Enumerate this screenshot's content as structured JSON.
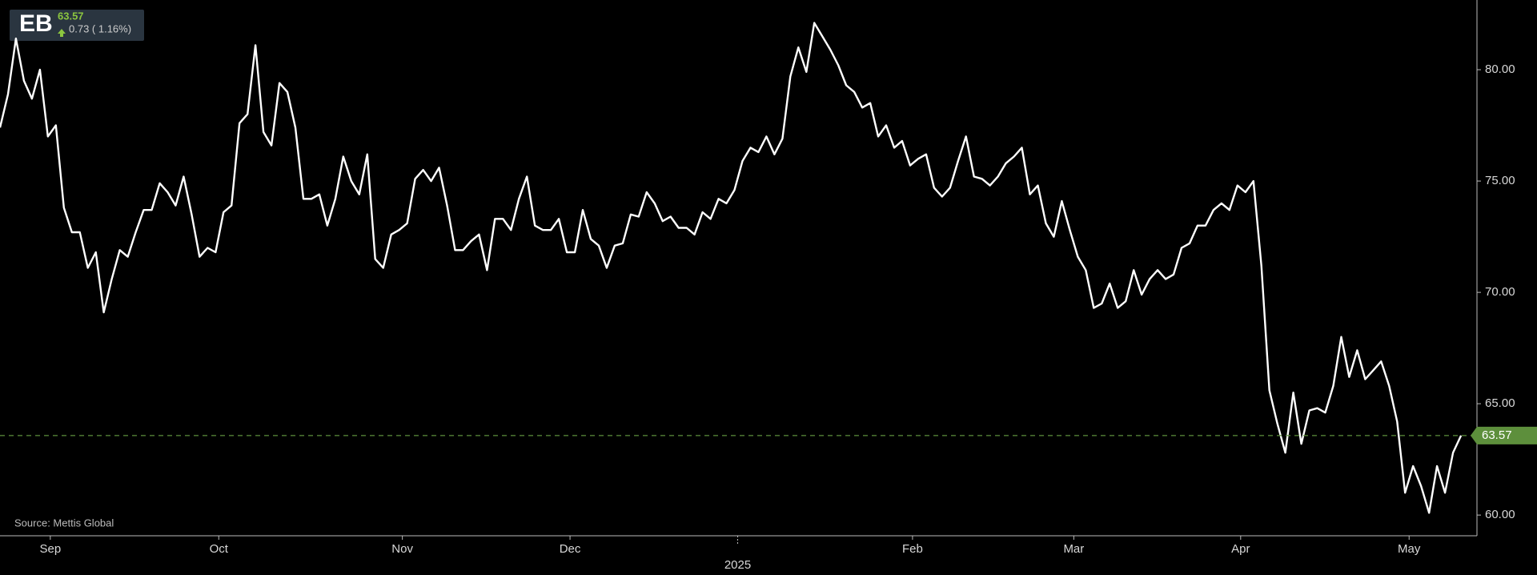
{
  "chart_data": {
    "type": "line",
    "ticker": "EB",
    "change": "0.73 ( 1.16%)",
    "source": "Source: Mettis Global",
    "series": [
      {
        "color": "#ffffff",
        "values": [
          77.4,
          78.9,
          81.4,
          79.5,
          78.7,
          80.0,
          77.0,
          77.5,
          73.8,
          72.7,
          72.7,
          71.1,
          71.8,
          69.1,
          70.6,
          71.9,
          71.6,
          72.7,
          73.7,
          73.7,
          74.9,
          74.5,
          73.9,
          75.2,
          73.5,
          71.6,
          72.0,
          71.8,
          73.6,
          73.9,
          77.6,
          78.0,
          81.1,
          77.2,
          76.6,
          79.4,
          79.0,
          77.4,
          74.2,
          74.2,
          74.4,
          73.0,
          74.2,
          76.1,
          75.0,
          74.4,
          76.2,
          71.5,
          71.1,
          72.6,
          72.8,
          73.1,
          75.1,
          75.5,
          75.0,
          75.6,
          73.9,
          71.9,
          71.9,
          72.3,
          72.6,
          71.0,
          73.3,
          73.3,
          72.8,
          74.2,
          75.2,
          73.0,
          72.8,
          72.8,
          73.3,
          71.8,
          71.8,
          73.7,
          72.4,
          72.1,
          71.1,
          72.1,
          72.2,
          73.5,
          73.4,
          74.5,
          74.0,
          73.2,
          73.4,
          72.9,
          72.9,
          72.6,
          73.6,
          73.3,
          74.2,
          74.0,
          74.6,
          75.9,
          76.5,
          76.3,
          77.0,
          76.2,
          76.9,
          79.7,
          81.0,
          79.9,
          82.1,
          81.5,
          80.9,
          80.2,
          79.3,
          79.0,
          78.3,
          78.5,
          77.0,
          77.5,
          76.5,
          76.8,
          75.7,
          76.0,
          76.2,
          74.7,
          74.3,
          74.7,
          75.9,
          77.0,
          75.2,
          75.1,
          74.8,
          75.2,
          75.8,
          76.1,
          76.5,
          74.4,
          74.8,
          73.1,
          72.5,
          74.1,
          72.8,
          71.6,
          71.0,
          69.3,
          69.5,
          70.4,
          69.3,
          69.6,
          71.0,
          69.9,
          70.6,
          71.0,
          70.6,
          70.8,
          72.0,
          72.2,
          73.0,
          73.0,
          73.7,
          74.0,
          73.7,
          74.8,
          74.5,
          75.0,
          71.2,
          65.6,
          64.1,
          62.8,
          65.5,
          63.2,
          64.7,
          64.8,
          64.6,
          65.8,
          68.0,
          66.2,
          67.4,
          66.1,
          66.5,
          66.9,
          65.8,
          64.2,
          61.0,
          62.2,
          61.3,
          60.1,
          62.2,
          61.0,
          62.8,
          63.57
        ]
      }
    ],
    "xlim": [
      0,
      185
    ],
    "xticks": [
      {
        "value": 6.3,
        "label": "Sep"
      },
      {
        "value": 27.4,
        "label": "Oct"
      },
      {
        "value": 50.4,
        "label": "Nov"
      },
      {
        "value": 71.4,
        "label": "Dec"
      },
      {
        "value": 92.4,
        "label": "2025"
      },
      {
        "value": 114.3,
        "label": "Feb"
      },
      {
        "value": 134.5,
        "label": "Mar"
      },
      {
        "value": 155.4,
        "label": "Apr"
      },
      {
        "value": 176.5,
        "label": "May"
      }
    ],
    "ylim": [
      59.07,
      83.13
    ],
    "yticks": [
      {
        "value": 60,
        "label": "60.00"
      },
      {
        "value": 65,
        "label": "65.00"
      },
      {
        "value": 70,
        "label": "70.00"
      },
      {
        "value": 75,
        "label": "75.00"
      },
      {
        "value": 80,
        "label": "80.00"
      }
    ],
    "last_color": "#5d8f3c"
  }
}
